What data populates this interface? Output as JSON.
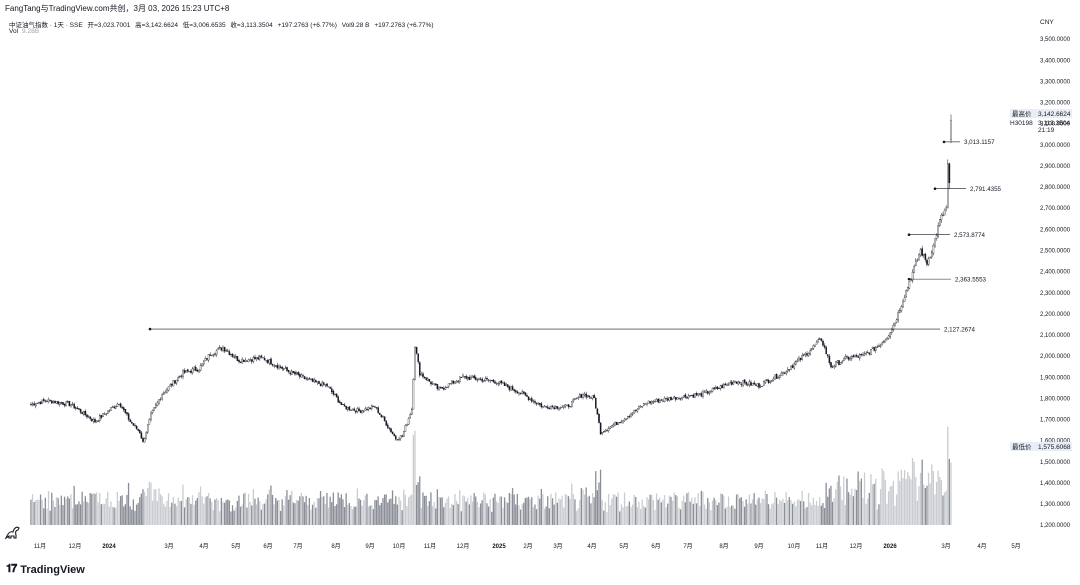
{
  "header": {
    "shared_by": "FangTang与TradingView.com共创，3月 03, 2026 15:23 UTC+8",
    "symbol": "中证油气指数 · 1天 · SSE",
    "open": "开=3,023.7001",
    "high": "高=3,142.6624",
    "low": "低=3,006.6535",
    "close": "收=3,113.3504",
    "change": "+197.2763 (+6.77%)",
    "volume": "Vol9.28 B",
    "change2": "+197.2763 (+6.77%)",
    "vol_label": "Vol",
    "vol_value": "9.28B",
    "currency": "CNY"
  },
  "footer": {
    "brand": "TradingView"
  },
  "price_tags": {
    "high_label": "最高价",
    "high_value": "3,142.6624",
    "close_value": "3,113.3504",
    "symbol_code": "H30198",
    "countdown": "21:19",
    "low_label": "最低价",
    "low_value": "1,575.6068"
  },
  "chart_data": {
    "type": "candlestick",
    "y_axis": {
      "min": 1150,
      "max": 3550,
      "ticks": [
        "3,500.0000",
        "3,400.0000",
        "3,300.0000",
        "3,200.0000",
        "3,100.0000",
        "3,000.0000",
        "2,900.0000",
        "2,800.0000",
        "2,700.0000",
        "2,600.0000",
        "2,500.0000",
        "2,400.0000",
        "2,300.0000",
        "2,200.0000",
        "2,100.0000",
        "2,000.0000",
        "1,900.0000",
        "1,800.0000",
        "1,700.0000",
        "1,600.0000",
        "1,500.0000",
        "1,400.0000",
        "1,300.0000",
        "1,200.0000"
      ],
      "tick_values": [
        3500,
        3400,
        3300,
        3200,
        3100,
        3000,
        2900,
        2800,
        2700,
        2600,
        2500,
        2400,
        2300,
        2200,
        2100,
        2000,
        1900,
        1800,
        1700,
        1600,
        1500,
        1400,
        1300,
        1200
      ]
    },
    "x_axis": {
      "labels": [
        "11月",
        "12月",
        "2024",
        "3月",
        "4月",
        "5月",
        "6月",
        "7月",
        "8月",
        "9月",
        "10月",
        "11月",
        "12月",
        "2025",
        "2月",
        "3月",
        "4月",
        "5月",
        "6月",
        "7月",
        "8月",
        "9月",
        "10月",
        "11月",
        "12月",
        "2026",
        "3月",
        "4月",
        "5月"
      ],
      "bold": [
        false,
        false,
        true,
        false,
        false,
        false,
        false,
        false,
        false,
        false,
        false,
        false,
        false,
        true,
        false,
        false,
        false,
        false,
        false,
        false,
        false,
        false,
        false,
        false,
        false,
        true,
        false,
        false,
        false
      ]
    },
    "price_anchors": [
      [
        0,
        1770
      ],
      [
        10,
        1790
      ],
      [
        25,
        1770
      ],
      [
        40,
        1690
      ],
      [
        55,
        1780
      ],
      [
        62,
        1690
      ],
      [
        68,
        1640
      ],
      [
        70,
        1590
      ],
      [
        75,
        1720
      ],
      [
        82,
        1820
      ],
      [
        95,
        1920
      ],
      [
        105,
        1940
      ],
      [
        112,
        2010
      ],
      [
        120,
        2040
      ],
      [
        130,
        1980
      ],
      [
        145,
        1990
      ],
      [
        160,
        1930
      ],
      [
        175,
        1880
      ],
      [
        185,
        1860
      ],
      [
        195,
        1760
      ],
      [
        205,
        1740
      ],
      [
        215,
        1760
      ],
      [
        222,
        1680
      ],
      [
        228,
        1610
      ],
      [
        232,
        1620
      ],
      [
        238,
        1750
      ],
      [
        240,
        2050
      ],
      [
        243,
        1920
      ],
      [
        255,
        1840
      ],
      [
        270,
        1900
      ],
      [
        290,
        1880
      ],
      [
        305,
        1830
      ],
      [
        320,
        1760
      ],
      [
        335,
        1760
      ],
      [
        345,
        1820
      ],
      [
        352,
        1800
      ],
      [
        356,
        1640
      ],
      [
        370,
        1700
      ],
      [
        385,
        1780
      ],
      [
        400,
        1800
      ],
      [
        420,
        1820
      ],
      [
        440,
        1880
      ],
      [
        455,
        1860
      ],
      [
        470,
        1920
      ],
      [
        480,
        1980
      ],
      [
        490,
        2050
      ],
      [
        494,
        2080
      ],
      [
        500,
        1950
      ],
      [
        510,
        1990
      ],
      [
        520,
        2000
      ],
      [
        530,
        2050
      ],
      [
        535,
        2090
      ],
      [
        540,
        2160
      ],
      [
        548,
        2330
      ],
      [
        556,
        2500
      ],
      [
        560,
        2440
      ],
      [
        564,
        2520
      ],
      [
        568,
        2640
      ],
      [
        572,
        2700
      ]
    ],
    "last_candles": [
      {
        "o": 2700,
        "h": 2930,
        "l": 2700,
        "c": 2910
      },
      {
        "o": 2910,
        "h": 2915,
        "l": 2790,
        "c": 2820
      },
      {
        "o": 3024,
        "h": 3143,
        "l": 3007,
        "c": 3113
      }
    ],
    "volume": {
      "min": 1150,
      "note": "volume bars share the price scale bottom"
    },
    "horizontal_levels": [
      {
        "label": "2,127.2674",
        "value": 2127.2674
      },
      {
        "label": "3,013.1157",
        "value": 3013.1157
      },
      {
        "label": "2,791.4355",
        "value": 2791.4355
      },
      {
        "label": "2,573.8774",
        "value": 2573.8774
      },
      {
        "label": "2,363.5553",
        "value": 2363.5553
      }
    ]
  }
}
